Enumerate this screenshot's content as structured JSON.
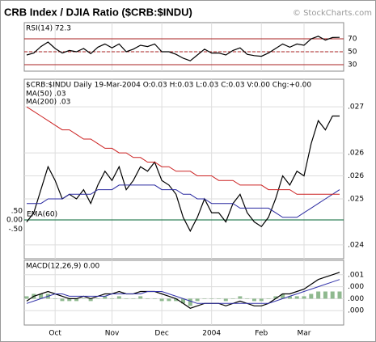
{
  "header": {
    "title": "CRB Index / DJIA Ratio ($CRB:$INDU)",
    "credit": "© StockCharts.com"
  },
  "chart_data": [
    {
      "type": "line",
      "label": "RSI(14) 72.3",
      "ylim": [
        20,
        95
      ],
      "yticks": [
        30,
        50,
        70
      ],
      "reference_lines": [
        {
          "value": 70,
          "color": "#aa2222"
        },
        {
          "value": 50,
          "color": "#aa2222",
          "dashed": true
        },
        {
          "value": 30,
          "color": "#aa2222"
        }
      ],
      "series": [
        {
          "name": "RSI(14)",
          "color": "#000000",
          "values": [
            45,
            48,
            58,
            65,
            55,
            48,
            52,
            50,
            55,
            47,
            57,
            62,
            56,
            62,
            50,
            54,
            60,
            58,
            62,
            50,
            50,
            46,
            40,
            36,
            45,
            54,
            48,
            48,
            45,
            52,
            56,
            46,
            44,
            43,
            48,
            55,
            62,
            57,
            62,
            60,
            70,
            74,
            68,
            72,
            72.3
          ]
        }
      ]
    },
    {
      "type": "line",
      "label": "$CRB:$INDU Daily 19-Mar-2004 O:0.03 H:0.03 L:0.03 C:0.03 V:0.00 Chg:+0.00",
      "ylim": [
        0.0237,
        0.0276
      ],
      "yticks": [
        {
          "value": 0.027,
          "label": ".027"
        },
        {
          "value": 0.026,
          "label": ".026"
        },
        {
          "value": 0.0255,
          "label": ".026"
        },
        {
          "value": 0.025,
          "label": ".025"
        },
        {
          "value": 0.024,
          "label": ".024"
        }
      ],
      "overlay": {
        "name": "EMA(60)",
        "color": "#006633",
        "level": 0,
        "ylim": [
          -0.8,
          0.8
        ],
        "yticks": [
          {
            "value": 0.5,
            "label": ".50"
          },
          {
            "value": 0,
            "label": "0.00"
          },
          {
            "value": -0.5,
            "label": "-.50"
          }
        ]
      },
      "series": [
        {
          "name": "$CRB:$INDU",
          "color": "#000000",
          "values": [
            0.0245,
            0.0247,
            0.0252,
            0.0257,
            0.0254,
            0.025,
            0.0251,
            0.025,
            0.0252,
            0.0249,
            0.0253,
            0.0256,
            0.0254,
            0.0257,
            0.0252,
            0.0254,
            0.0257,
            0.0256,
            0.0258,
            0.0254,
            0.0253,
            0.0251,
            0.0246,
            0.0243,
            0.0246,
            0.025,
            0.0247,
            0.0247,
            0.0245,
            0.0249,
            0.0251,
            0.0247,
            0.0245,
            0.0244,
            0.0246,
            0.025,
            0.0255,
            0.0253,
            0.0256,
            0.0255,
            0.0262,
            0.0267,
            0.0265,
            0.0268,
            0.0268
          ]
        },
        {
          "name": "MA(50) .03",
          "color": "#2a2aa0",
          "values": [
            0.0249,
            0.0249,
            0.0249,
            0.025,
            0.025,
            0.025,
            0.0251,
            0.0251,
            0.0251,
            0.0251,
            0.0252,
            0.0252,
            0.0252,
            0.0253,
            0.0253,
            0.0253,
            0.0253,
            0.0253,
            0.0253,
            0.0252,
            0.0252,
            0.0252,
            0.0251,
            0.0251,
            0.025,
            0.025,
            0.0249,
            0.0249,
            0.0249,
            0.0249,
            0.0248,
            0.0248,
            0.0248,
            0.0248,
            0.0248,
            0.0247,
            0.0246,
            0.0246,
            0.0246,
            0.0247,
            0.0248,
            0.0249,
            0.025,
            0.0251,
            0.0252
          ]
        },
        {
          "name": "MA(200) .03",
          "color": "#cc2222",
          "values": [
            0.027,
            0.0269,
            0.0268,
            0.0267,
            0.0266,
            0.0265,
            0.0265,
            0.0264,
            0.0263,
            0.0263,
            0.0262,
            0.0261,
            0.0261,
            0.026,
            0.026,
            0.0259,
            0.0259,
            0.0258,
            0.0258,
            0.0257,
            0.0257,
            0.0256,
            0.0256,
            0.0256,
            0.0255,
            0.0255,
            0.0255,
            0.0254,
            0.0254,
            0.0254,
            0.0253,
            0.0253,
            0.0253,
            0.0253,
            0.0252,
            0.0252,
            0.0252,
            0.0252,
            0.0251,
            0.0251,
            0.0251,
            0.0251,
            0.0251,
            0.0251,
            0.0251
          ]
        }
      ]
    },
    {
      "type": "macd",
      "label": "MACD(12,26,9) 0.00",
      "ylim": [
        -0.0011,
        0.0016
      ],
      "yticks": [
        {
          "value": 0.001,
          "label": ".001"
        },
        {
          "value": 0.0005,
          "label": ".000"
        },
        {
          "value": 0,
          "label": ".000"
        },
        {
          "value": -0.0005,
          "label": ".000"
        }
      ],
      "xlim": [
        0,
        44
      ],
      "xticks": [
        {
          "value": 4,
          "label": "Oct"
        },
        {
          "value": 12,
          "label": "Nov"
        },
        {
          "value": 19,
          "label": "Dec"
        },
        {
          "value": 26,
          "label": "2004"
        },
        {
          "value": 33,
          "label": "Feb"
        },
        {
          "value": 39,
          "label": "Mar"
        }
      ],
      "histogram": {
        "color": "#8fb98f",
        "values": [
          0.0001,
          0.0002,
          0.0002,
          0.0002,
          0,
          -0.0001,
          -0.0001,
          -0.0001,
          0,
          -0.0001,
          0,
          0.0001,
          0,
          0.0001,
          0,
          0,
          0.0001,
          0,
          0,
          -0.0001,
          -0.0001,
          -0.0001,
          -0.0002,
          -0.0003,
          -0.0001,
          0,
          0,
          0,
          -0.0001,
          0,
          0.0001,
          0,
          -0.0001,
          -0.0001,
          0,
          0.0001,
          0.0002,
          0.0001,
          0.0001,
          0.0001,
          0.0002,
          0.0003,
          0.0003,
          0.0003,
          0.0003
        ]
      },
      "series": [
        {
          "name": "MACD",
          "color": "#000000",
          "values": [
            -0.0001,
            0.0001,
            0.0002,
            0.0003,
            0.0002,
            0.0001,
            0,
            0,
            0.0001,
            0,
            0.0001,
            0.0002,
            0.0002,
            0.0003,
            0.0002,
            0.0002,
            0.0003,
            0.0003,
            0.0003,
            0.0002,
            0.0001,
            0,
            -0.0002,
            -0.0004,
            -0.0003,
            -0.0002,
            -0.0002,
            -0.0002,
            -0.0003,
            -0.0002,
            -0.0001,
            -0.0002,
            -0.0003,
            -0.0003,
            -0.0002,
            0,
            0.0002,
            0.0002,
            0.0003,
            0.0004,
            0.0006,
            0.0008,
            0.0009,
            0.001,
            0.0011
          ]
        },
        {
          "name": "Signal",
          "color": "#3333aa",
          "values": [
            -0.0002,
            -0.0001,
            0,
            0.0001,
            0.0002,
            0.0002,
            0.0001,
            0.0001,
            0.0001,
            0.0001,
            0.0001,
            0.0001,
            0.0002,
            0.0002,
            0.0002,
            0.0002,
            0.0002,
            0.0003,
            0.0003,
            0.0003,
            0.0002,
            0.0001,
            0,
            -0.0001,
            -0.0002,
            -0.0002,
            -0.0002,
            -0.0002,
            -0.0002,
            -0.0002,
            -0.0002,
            -0.0002,
            -0.0002,
            -0.0002,
            -0.0002,
            -0.0001,
            0,
            0.0001,
            0.0002,
            0.0003,
            0.0004,
            0.0005,
            0.0006,
            0.0007,
            0.0008
          ]
        }
      ]
    }
  ]
}
